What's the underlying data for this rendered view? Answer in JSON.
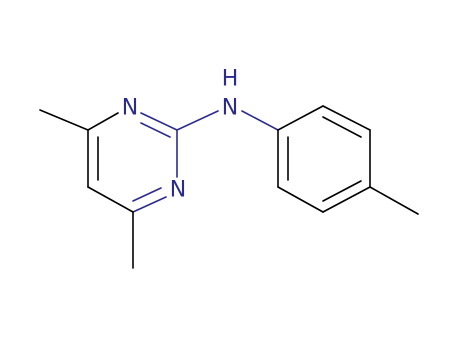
{
  "nodes": [
    {
      "label": "N"
    },
    {
      "label": "N"
    },
    {
      "label": "N"
    },
    {
      "label": "H"
    }
  ]
}
